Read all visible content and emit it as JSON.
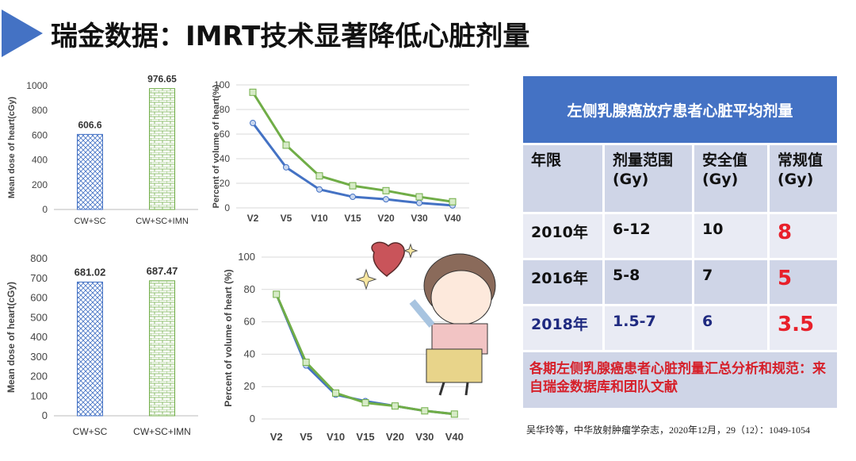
{
  "title": "瑞金数据：IMRT技术显著降低心脏剂量",
  "chart_data": [
    {
      "type": "bar",
      "title": "",
      "ylabel": "Mean dose of heart(cGy)",
      "xlabel": "",
      "categories": [
        "CW+SC",
        "CW+SC+IMN"
      ],
      "values": [
        606.6,
        976.65
      ],
      "value_labels": [
        "606.6",
        "976.65"
      ],
      "ylim": [
        0,
        1000
      ],
      "yticks": [
        0,
        200,
        400,
        600,
        800,
        1000
      ],
      "colors": [
        "#4472c4",
        "#70ad47"
      ],
      "grid": false
    },
    {
      "type": "line",
      "title": "",
      "ylabel": "Percent of volume of heart(%)",
      "xlabel": "",
      "categories": [
        "V2",
        "V5",
        "V10",
        "V15",
        "V20",
        "V30",
        "V40"
      ],
      "series": [
        {
          "name": "CW+SC",
          "color": "#4472c4",
          "marker": "circle",
          "values": [
            69,
            33,
            15,
            9,
            7,
            4,
            2
          ]
        },
        {
          "name": "CW+SC+IMN",
          "color": "#70ad47",
          "marker": "square",
          "values": [
            94,
            51,
            26,
            18,
            14,
            9,
            5
          ]
        }
      ],
      "ylim": [
        0,
        100
      ],
      "yticks": [
        0,
        20,
        40,
        60,
        80,
        100
      ],
      "grid": true
    },
    {
      "type": "bar",
      "title": "",
      "ylabel": "Mean dose of heart(cGy)",
      "xlabel": "",
      "categories": [
        "CW+SC",
        "CW+SC+IMN"
      ],
      "values": [
        681.02,
        687.47
      ],
      "value_labels": [
        "681.02",
        "687.47"
      ],
      "ylim": [
        0,
        800
      ],
      "yticks": [
        0,
        100,
        200,
        300,
        400,
        500,
        600,
        700,
        800
      ],
      "colors": [
        "#4472c4",
        "#70ad47"
      ],
      "grid": false
    },
    {
      "type": "line",
      "title": "",
      "ylabel": "Percent of volume of heart (%)",
      "xlabel": "",
      "categories": [
        "V2",
        "V5",
        "V10",
        "V15",
        "V20",
        "V30",
        "V40"
      ],
      "series": [
        {
          "name": "CW+SC",
          "color": "#4472c4",
          "marker": "circle",
          "values": [
            77,
            33,
            15,
            11,
            8,
            5,
            3
          ]
        },
        {
          "name": "CW+SC+IMN",
          "color": "#70ad47",
          "marker": "square",
          "values": [
            77,
            35,
            16,
            10,
            8,
            5,
            3
          ]
        }
      ],
      "ylim": [
        0,
        100
      ],
      "yticks": [
        0,
        20,
        40,
        60,
        80,
        100
      ],
      "grid": true
    }
  ],
  "table": {
    "title": "左侧乳腺癌放疗患者心脏平均剂量",
    "headers": [
      "年限",
      "剂量范围\n(Gy)",
      "安全值\n(Gy)",
      "常规值\n(Gy)"
    ],
    "rows": [
      [
        "2010年",
        "6-12",
        "10",
        "8"
      ],
      [
        "2016年",
        "5-8",
        "7",
        "5"
      ],
      [
        "2018年",
        "1.5-7",
        "6",
        "3.5"
      ]
    ],
    "footer": "各期左侧乳腺癌患者心脏剂量汇总分析和规范：来自瑞金数据库和团队文献"
  },
  "citation": "吴华玲等，中华放射肿瘤学杂志，2020年12月，29（12）：1049-1054",
  "colors": {
    "accent": "#4472c4",
    "highlight": "#e8202a",
    "green": "#70ad47"
  }
}
